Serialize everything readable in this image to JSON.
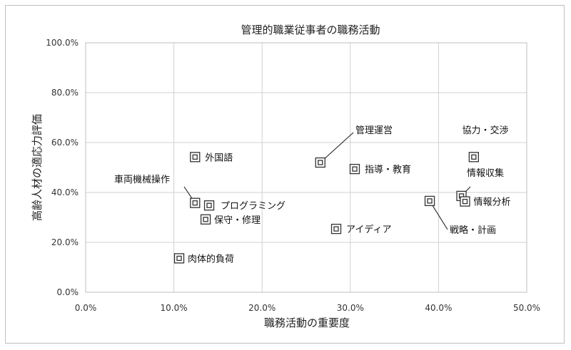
{
  "chart_data": {
    "type": "scatter",
    "title": "管理的職業従事者の職務活動",
    "xlabel": "職務活動の重要度",
    "ylabel": "高齢人材の適応力評価",
    "xlim": [
      0,
      50
    ],
    "ylim": [
      0,
      100
    ],
    "x_ticks": [
      0,
      10,
      20,
      30,
      40,
      50
    ],
    "y_ticks": [
      0,
      20,
      40,
      60,
      80,
      100
    ],
    "x_tick_labels": [
      "0.0%",
      "10.0%",
      "20.0%",
      "30.0%",
      "40.0%",
      "50.0%"
    ],
    "y_tick_labels": [
      "0.0%",
      "20.0%",
      "40.0%",
      "60.0%",
      "80.0%",
      "100.0%"
    ],
    "grid": true,
    "points": [
      {
        "label": "外国語",
        "x": 12.4,
        "y": 54.2
      },
      {
        "label": "管理運営",
        "x": 26.6,
        "y": 52.0
      },
      {
        "label": "指導・教育",
        "x": 30.5,
        "y": 49.4
      },
      {
        "label": "協力・交渉",
        "x": 44.0,
        "y": 54.2
      },
      {
        "label": "情報収集",
        "x": 42.6,
        "y": 38.6
      },
      {
        "label": "情報分析",
        "x": 43.0,
        "y": 36.4
      },
      {
        "label": "車両機械操作",
        "x": 12.4,
        "y": 35.8
      },
      {
        "label": "プログラミング",
        "x": 14.0,
        "y": 34.8
      },
      {
        "label": "保守・修理",
        "x": 13.6,
        "y": 29.2
      },
      {
        "label": "戦略・計画",
        "x": 39.0,
        "y": 36.6
      },
      {
        "label": "アイディア",
        "x": 28.4,
        "y": 25.4
      },
      {
        "label": "肉体的負荷",
        "x": 10.6,
        "y": 13.6
      }
    ]
  }
}
